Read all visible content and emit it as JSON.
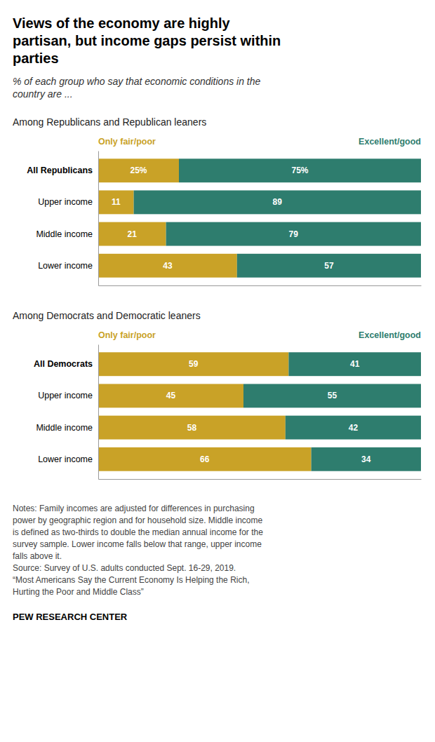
{
  "title": "Views of the economy are highly\npartisan, but income gaps persist within\nparties",
  "subtitle": "% of each group who say that economic conditions in the\ncountry are ...",
  "annotations": [
    "Notes: Family incomes are adjusted for differences in purchasing",
    "power by geographic region and for household size. Middle income",
    "is defined as two-thirds to double the median annual income for the",
    "survey sample. Lower income falls below that range, upper income",
    "falls above it.",
    "Source: Survey of U.S. adults conducted Sept. 16-29, 2019.",
    "“Most Americans Say the Current Economy Is Helping the Rich,",
    "Hurting the Poor and Middle Class”"
  ],
  "source": "PEW RESEARCH CENTER",
  "chart_data": [
    {
      "type": "bar",
      "title": "Among Republicans and Republican leaners",
      "orientation": "horizontal",
      "stacked": true,
      "data_labels": true,
      "tick_labels": "y",
      "categories": [
        "All Republicans",
        "Upper income",
        "Middle income",
        "Lower income"
      ],
      "xlim": [
        0,
        100
      ],
      "series": [
        {
          "name": "Only fair/poor",
          "color": "#C9A227",
          "values": [
            25,
            11,
            21,
            43
          ],
          "value_labels": [
            "25%",
            "11",
            "21",
            "43"
          ]
        },
        {
          "name": "Excellent/good",
          "color": "#2E7D6E",
          "values": [
            75,
            89,
            79,
            57
          ],
          "value_labels": [
            "75%",
            "89",
            "79",
            "57"
          ]
        }
      ]
    },
    {
      "type": "bar",
      "title": "Among Democrats and Democratic leaners",
      "orientation": "horizontal",
      "stacked": true,
      "data_labels": true,
      "tick_labels": "y",
      "categories": [
        "All Democrats",
        "Upper income",
        "Middle income",
        "Lower income"
      ],
      "xlim": [
        0,
        100
      ],
      "series": [
        {
          "name": "Only fair/poor",
          "color": "#C9A227",
          "values": [
            59,
            45,
            58,
            66
          ]
        },
        {
          "name": "Excellent/good",
          "color": "#2E7D6E",
          "values": [
            41,
            55,
            42,
            34
          ]
        }
      ]
    }
  ]
}
